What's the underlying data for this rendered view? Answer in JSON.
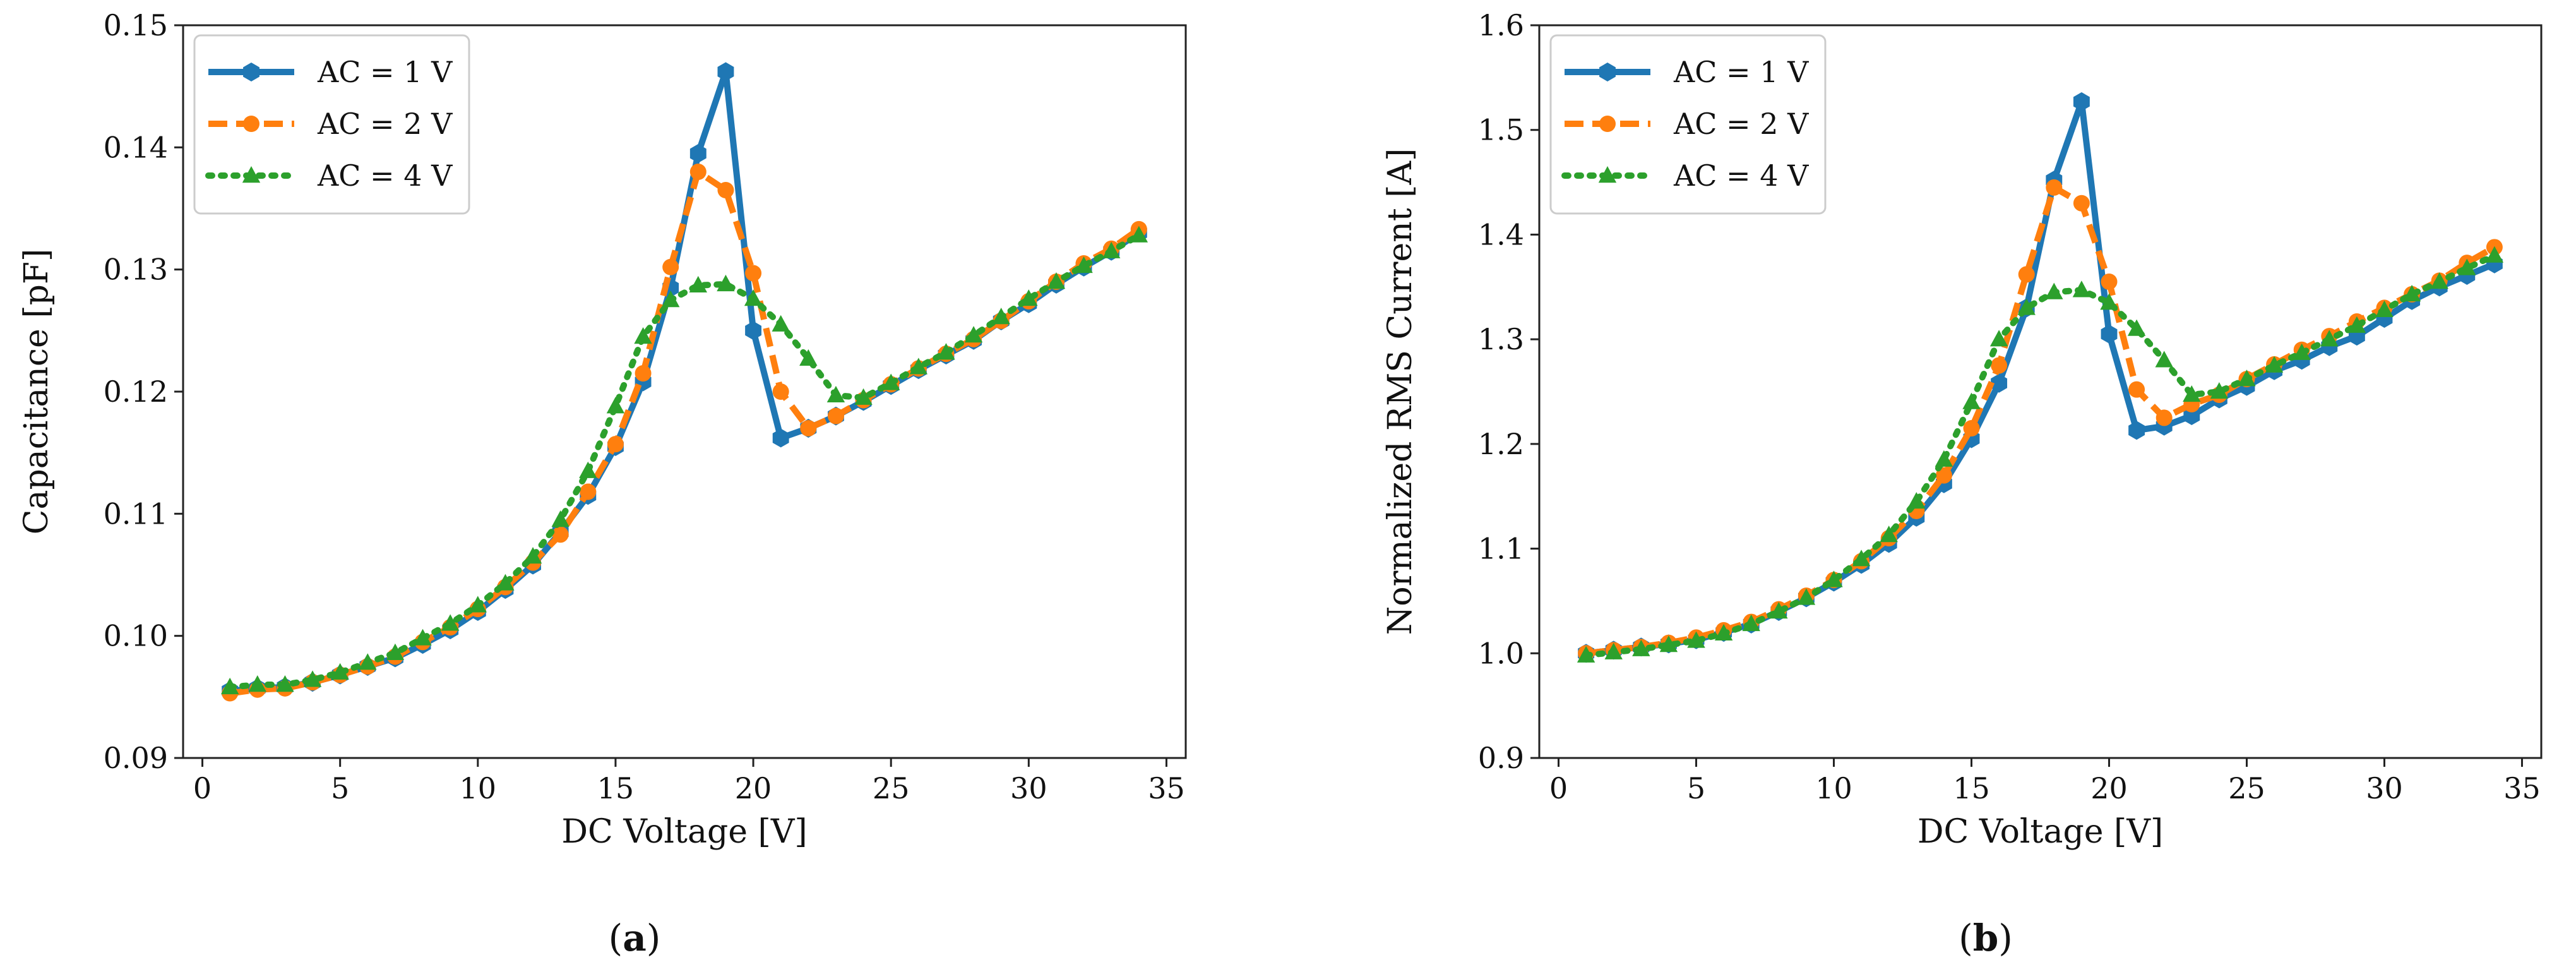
{
  "chart_data": [
    {
      "type": "line",
      "panel_label": "a",
      "title": "",
      "xlabel": "DC Voltage [V]",
      "ylabel": "Capacitance [pF]",
      "xlim": [
        -0.7,
        35.7
      ],
      "ylim": [
        0.09,
        0.15
      ],
      "xticks": [
        0,
        5,
        10,
        15,
        20,
        25,
        30,
        35
      ],
      "xtick_labels": [
        "0",
        "5",
        "10",
        "15",
        "20",
        "25",
        "30",
        "35"
      ],
      "yticks": [
        0.09,
        0.1,
        0.11,
        0.12,
        0.13,
        0.14,
        0.15
      ],
      "ytick_labels": [
        "0.09",
        "0.10",
        "0.11",
        "0.12",
        "0.13",
        "0.14",
        "0.15"
      ],
      "grid": false,
      "legend_position": "top-left",
      "x": [
        1,
        2,
        3,
        4,
        5,
        6,
        7,
        8,
        9,
        10,
        11,
        12,
        13,
        14,
        15,
        16,
        17,
        18,
        19,
        20,
        21,
        22,
        23,
        24,
        25,
        26,
        27,
        28,
        29,
        30,
        31,
        32,
        33,
        34
      ],
      "series": [
        {
          "name": "AC = 1 V",
          "color": "#1f77b4",
          "marker": "hexagon",
          "dash": "solid",
          "values": [
            0.0955,
            0.0957,
            0.0958,
            0.0962,
            0.0968,
            0.0975,
            0.0982,
            0.0993,
            0.1005,
            0.102,
            0.1038,
            0.1058,
            0.1085,
            0.1115,
            0.1155,
            0.1208,
            0.1285,
            0.1395,
            0.1462,
            0.125,
            0.1162,
            0.117,
            0.118,
            0.1192,
            0.1205,
            0.1218,
            0.123,
            0.1242,
            0.1258,
            0.1272,
            0.1288,
            0.1302,
            0.1315,
            0.133
          ]
        },
        {
          "name": "AC = 2 V",
          "color": "#ff7f0e",
          "marker": "circle",
          "dash": "dashed",
          "values": [
            0.0953,
            0.0956,
            0.0957,
            0.0962,
            0.0968,
            0.0975,
            0.0983,
            0.0995,
            0.1007,
            0.1022,
            0.104,
            0.106,
            0.1083,
            0.1118,
            0.1157,
            0.1215,
            0.1302,
            0.138,
            0.1365,
            0.1297,
            0.12,
            0.117,
            0.118,
            0.1193,
            0.1206,
            0.1219,
            0.1231,
            0.1243,
            0.1258,
            0.1274,
            0.129,
            0.1305,
            0.1317,
            0.1333
          ]
        },
        {
          "name": "AC = 4 V",
          "color": "#2ca02c",
          "marker": "triangle",
          "dash": "dotted",
          "values": [
            0.0958,
            0.096,
            0.096,
            0.0964,
            0.097,
            0.0978,
            0.0986,
            0.0998,
            0.101,
            0.1025,
            0.1043,
            0.1065,
            0.1095,
            0.1135,
            0.1188,
            0.1245,
            0.1275,
            0.1287,
            0.1288,
            0.1276,
            0.1255,
            0.1227,
            0.1197,
            0.1195,
            0.1207,
            0.122,
            0.1232,
            0.1246,
            0.1261,
            0.1276,
            0.129,
            0.1303,
            0.1315,
            0.1328
          ]
        }
      ]
    },
    {
      "type": "line",
      "panel_label": "b",
      "title": "",
      "xlabel": "DC Voltage [V]",
      "ylabel": "Normalized RMS Current [A]",
      "xlim": [
        -0.7,
        35.7
      ],
      "ylim": [
        0.9,
        1.6
      ],
      "xticks": [
        0,
        5,
        10,
        15,
        20,
        25,
        30,
        35
      ],
      "xtick_labels": [
        "0",
        "5",
        "10",
        "15",
        "20",
        "25",
        "30",
        "35"
      ],
      "yticks": [
        0.9,
        1.0,
        1.1,
        1.2,
        1.3,
        1.4,
        1.5,
        1.6
      ],
      "ytick_labels": [
        "0.9",
        "1.0",
        "1.1",
        "1.2",
        "1.3",
        "1.4",
        "1.5",
        "1.6"
      ],
      "grid": false,
      "legend_position": "top-left",
      "x": [
        1,
        2,
        3,
        4,
        5,
        6,
        7,
        8,
        9,
        10,
        11,
        12,
        13,
        14,
        15,
        16,
        17,
        18,
        19,
        20,
        21,
        22,
        23,
        24,
        25,
        26,
        27,
        28,
        29,
        30,
        31,
        32,
        33,
        34
      ],
      "series": [
        {
          "name": "AC = 1 V",
          "color": "#1f77b4",
          "marker": "hexagon",
          "dash": "solid",
          "values": [
            1.0,
            1.003,
            1.006,
            1.009,
            1.013,
            1.02,
            1.028,
            1.04,
            1.053,
            1.068,
            1.085,
            1.105,
            1.13,
            1.162,
            1.205,
            1.258,
            1.33,
            1.452,
            1.527,
            1.305,
            1.213,
            1.217,
            1.227,
            1.243,
            1.255,
            1.27,
            1.28,
            1.293,
            1.303,
            1.32,
            1.337,
            1.35,
            1.361,
            1.372
          ]
        },
        {
          "name": "AC = 2 V",
          "color": "#ff7f0e",
          "marker": "circle",
          "dash": "dashed",
          "values": [
            1.0,
            1.003,
            1.006,
            1.01,
            1.015,
            1.022,
            1.03,
            1.042,
            1.055,
            1.07,
            1.088,
            1.11,
            1.136,
            1.17,
            1.215,
            1.275,
            1.362,
            1.445,
            1.43,
            1.355,
            1.252,
            1.225,
            1.238,
            1.247,
            1.262,
            1.276,
            1.29,
            1.303,
            1.317,
            1.33,
            1.343,
            1.356,
            1.373,
            1.388
          ]
        },
        {
          "name": "AC = 4 V",
          "color": "#2ca02c",
          "marker": "triangle",
          "dash": "dotted",
          "values": [
            0.998,
            1.001,
            1.004,
            1.008,
            1.012,
            1.019,
            1.028,
            1.04,
            1.053,
            1.07,
            1.09,
            1.113,
            1.145,
            1.185,
            1.24,
            1.3,
            1.33,
            1.345,
            1.347,
            1.335,
            1.31,
            1.28,
            1.247,
            1.25,
            1.262,
            1.275,
            1.287,
            1.3,
            1.313,
            1.328,
            1.343,
            1.355,
            1.368,
            1.38
          ]
        }
      ]
    }
  ]
}
